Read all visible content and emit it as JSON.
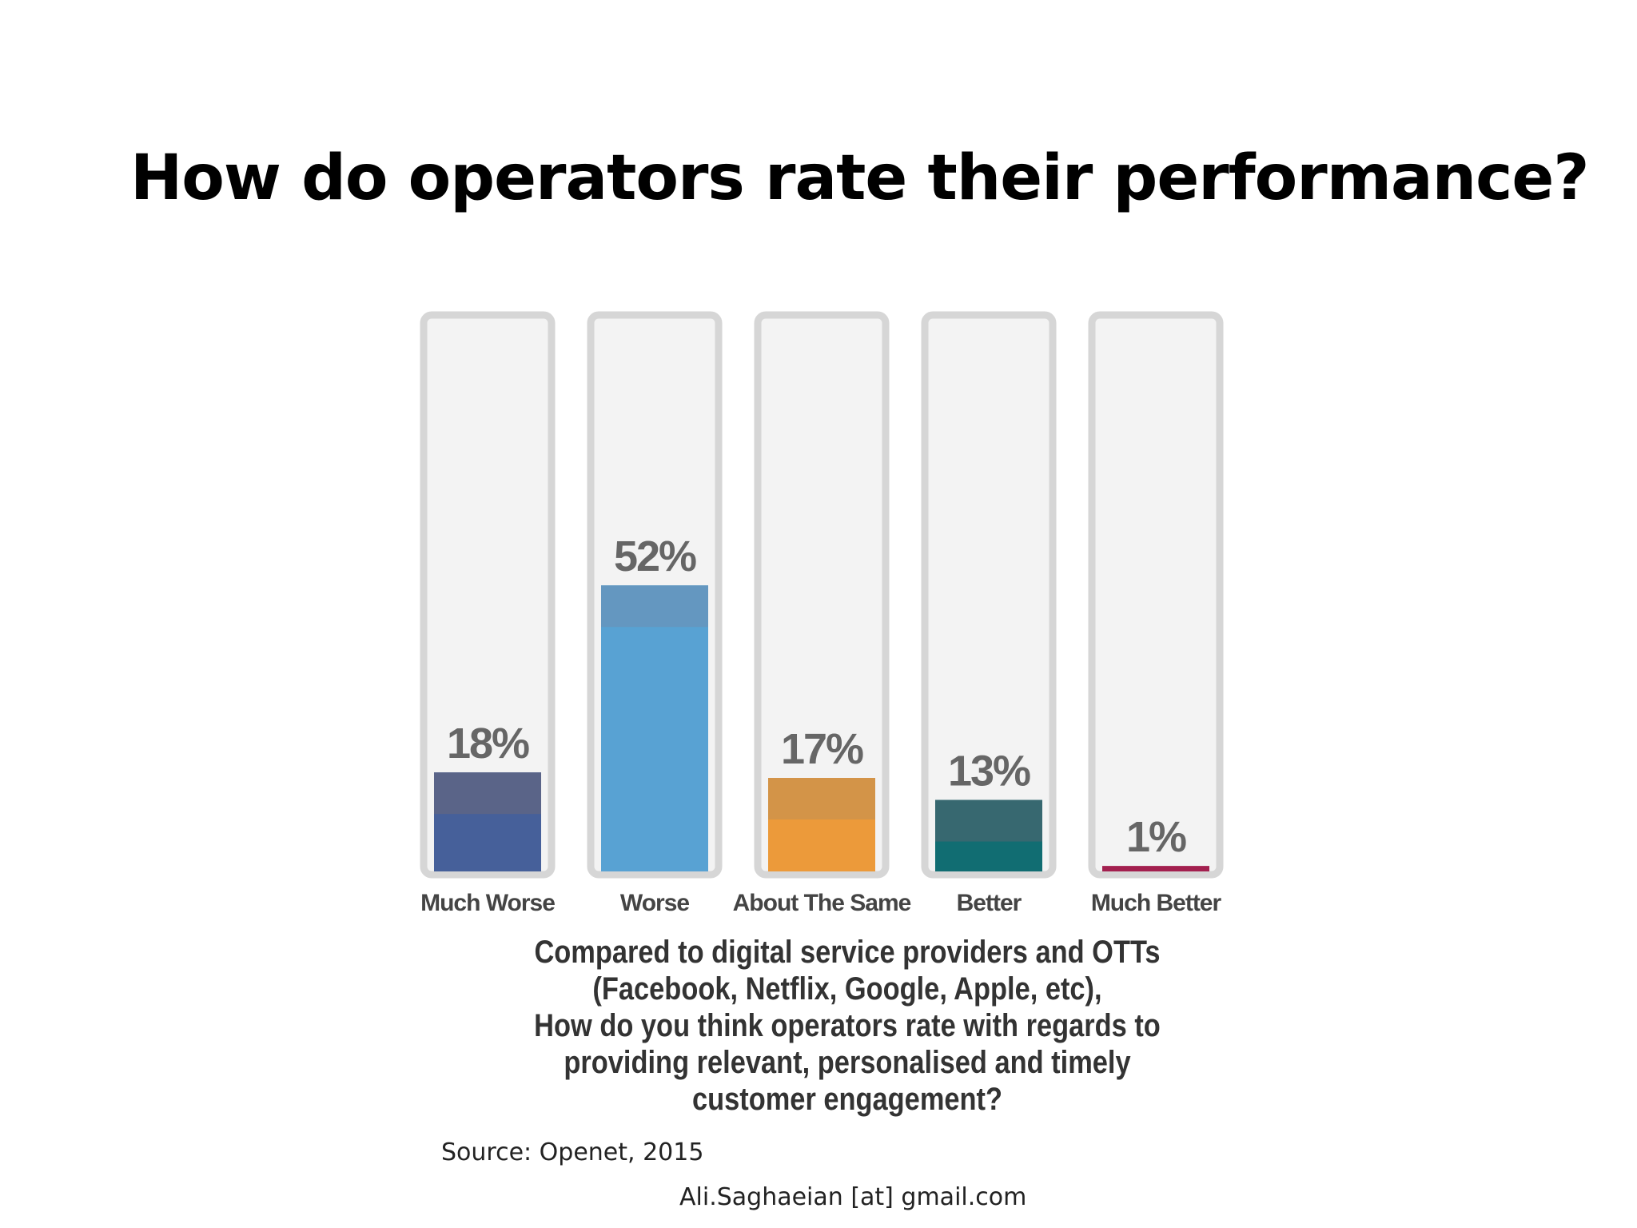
{
  "slide": {
    "title": "How do operators rate their performance?",
    "footer": "Ali.Saghaeian [at] gmail.com"
  },
  "chart_data": {
    "type": "bar",
    "title": "",
    "categories": [
      "Much Worse",
      "Worse",
      "About The Same",
      "Better",
      "Much Better"
    ],
    "values": [
      18,
      52,
      17,
      13,
      1
    ],
    "value_labels": [
      "18%",
      "52%",
      "17%",
      "13%",
      "1%"
    ],
    "ylim": [
      0,
      100
    ],
    "grid": false,
    "legend": "none",
    "colors": [
      "#46609a",
      "#58a2d3",
      "#ec9a3a",
      "#116d72",
      "#a3204f"
    ],
    "cap_colors": [
      "#5a6488",
      "#6497c0",
      "#d39448",
      "#376870",
      "#a3204f"
    ],
    "caption_lines": [
      "Compared to digital service providers and OTTs",
      "(Facebook, Netflix, Google, Apple, etc),",
      "How do you think operators rate with regards to",
      "providing relevant, personalised and timely",
      "customer engagement?"
    ],
    "source": "Source: Openet, 2015"
  }
}
